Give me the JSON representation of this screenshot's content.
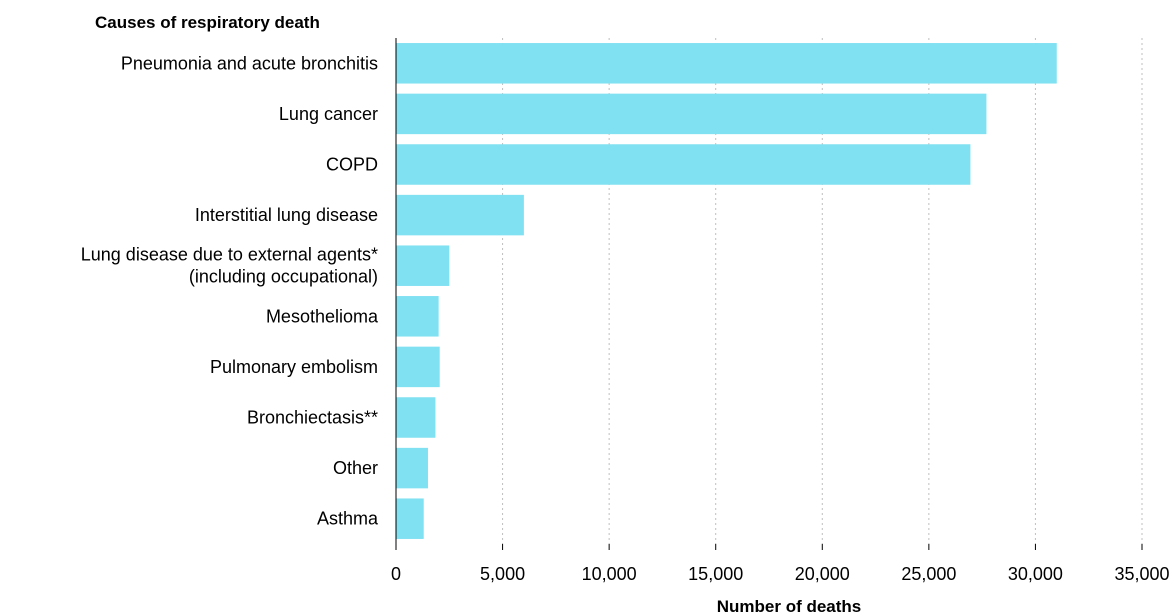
{
  "chart_data": {
    "type": "bar",
    "orientation": "horizontal",
    "ylabel": "Causes of respiratory death",
    "xlabel": "Number of deaths",
    "categories": [
      "Pneumonia and acute bronchitis",
      "Lung cancer",
      "COPD",
      "Interstitial lung disease",
      [
        "Lung disease due to external agents*",
        "(including occupational)"
      ],
      "Mesothelioma",
      "Pulmonary embolism",
      "Bronchiectasis**",
      "Other",
      "Asthma"
    ],
    "values": [
      31000,
      27700,
      26950,
      6000,
      2500,
      2000,
      2050,
      1850,
      1500,
      1300
    ],
    "xlim": [
      0,
      35000
    ],
    "xticks": [
      0,
      5000,
      10000,
      15000,
      20000,
      25000,
      30000,
      35000
    ],
    "xtick_labels": [
      "0",
      "5,000",
      "10,000",
      "15,000",
      "20,000",
      "25,000",
      "30,000",
      "35,000"
    ],
    "grid": "vertical dotted",
    "legend": "none",
    "bar_color": "#7FE1F1"
  }
}
